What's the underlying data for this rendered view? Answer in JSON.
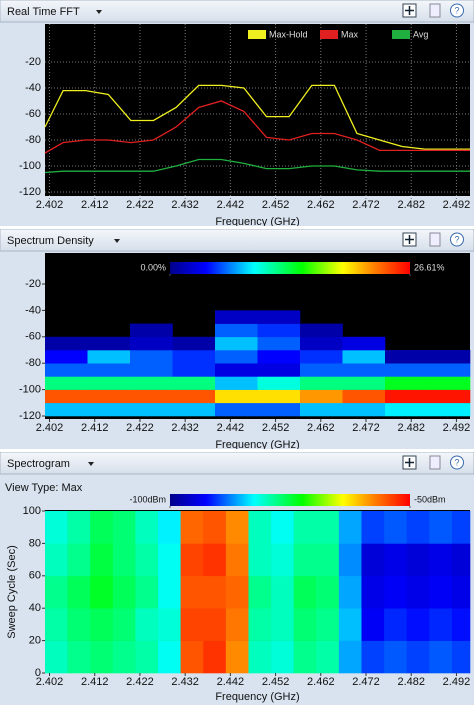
{
  "chart_data": [
    {
      "type": "line",
      "title": "Real Time FFT",
      "xlabel": "Frequency (GHz)",
      "x": [
        2.401,
        2.405,
        2.41,
        2.415,
        2.42,
        2.425,
        2.43,
        2.435,
        2.44,
        2.445,
        2.45,
        2.455,
        2.46,
        2.465,
        2.47,
        2.475,
        2.48,
        2.485,
        2.49,
        2.495
      ],
      "series": [
        {
          "name": "Max-Hold",
          "color": "#f0f020",
          "values": [
            -70,
            -42,
            -42,
            -45,
            -65,
            -65,
            -55,
            -38,
            -38,
            -40,
            -62,
            -62,
            -38,
            -38,
            -75,
            -80,
            -85,
            -87,
            -87,
            -87
          ]
        },
        {
          "name": "Max",
          "color": "#e02020",
          "values": [
            -90,
            -82,
            -80,
            -80,
            -82,
            -80,
            -70,
            -55,
            -50,
            -58,
            -78,
            -80,
            -75,
            -75,
            -80,
            -88,
            -88,
            -88,
            -88,
            -88
          ]
        },
        {
          "name": "Avg",
          "color": "#20b040",
          "values": [
            -105,
            -104,
            -104,
            -104,
            -104,
            -104,
            -100,
            -95,
            -95,
            -98,
            -102,
            -102,
            -100,
            -100,
            -103,
            -104,
            -104,
            -104,
            -104,
            -104
          ]
        }
      ],
      "xlim": [
        2.401,
        2.495
      ],
      "xticks": [
        2.402,
        2.412,
        2.422,
        2.432,
        2.442,
        2.452,
        2.462,
        2.472,
        2.482,
        2.492
      ],
      "ylim": [
        -120,
        -20
      ],
      "yticks": [
        -20,
        -40,
        -60,
        -80,
        -100,
        -120
      ],
      "grid": true
    },
    {
      "type": "heatmap",
      "title": "Spectrum Density",
      "xlabel": "Frequency (GHz)",
      "x_edges": [
        2.401,
        2.4104,
        2.4198,
        2.4292,
        2.4386,
        2.448,
        2.4574,
        2.4668,
        2.4762,
        2.4856,
        2.495
      ],
      "y_edges": [
        -120,
        -110,
        -100,
        -90,
        -80,
        -70,
        -60,
        -50,
        -40,
        -30,
        -20
      ],
      "values": [
        [
          8,
          8,
          8,
          8,
          6,
          6,
          8,
          8,
          9,
          9
        ],
        [
          24,
          24,
          24,
          24,
          20,
          20,
          22,
          24,
          26,
          26
        ],
        [
          12,
          12,
          12,
          12,
          8,
          10,
          12,
          12,
          14,
          14
        ],
        [
          6,
          6,
          6,
          5,
          3,
          3,
          6,
          6,
          6,
          6
        ],
        [
          4,
          8,
          6,
          5,
          6,
          4,
          5,
          8,
          1,
          1
        ],
        [
          1,
          1,
          2,
          1,
          8,
          6,
          2,
          3,
          0,
          0
        ],
        [
          0,
          0,
          1,
          0,
          6,
          5,
          1,
          0,
          0,
          0
        ],
        [
          0,
          0,
          0,
          0,
          2,
          2,
          0,
          0,
          0,
          0
        ],
        [
          0,
          0,
          0,
          0,
          0,
          0,
          0,
          0,
          0,
          0
        ],
        [
          0,
          0,
          0,
          0,
          0,
          0,
          0,
          0,
          0,
          0
        ]
      ],
      "clim": [
        0,
        26.61
      ],
      "cticks": [
        {
          "value": 0,
          "label": "0.00%"
        },
        {
          "value": 26.61,
          "label": "26.61%"
        }
      ],
      "xlim": [
        2.401,
        2.495
      ],
      "xticks": [
        2.402,
        2.412,
        2.422,
        2.432,
        2.442,
        2.452,
        2.462,
        2.472,
        2.482,
        2.492
      ],
      "ylim": [
        -120,
        -20
      ],
      "yticks": [
        -20,
        -40,
        -60,
        -80,
        -100,
        -120
      ],
      "grid": false
    },
    {
      "type": "heatmap",
      "title": "Spectrogram",
      "subtitle": "View Type: Max",
      "xlabel": "Frequency (GHz)",
      "ylabel": "Sweep Cycle (Sec)",
      "x_edges": [
        2.401,
        2.406,
        2.411,
        2.416,
        2.421,
        2.426,
        2.431,
        2.436,
        2.441,
        2.446,
        2.451,
        2.456,
        2.461,
        2.466,
        2.471,
        2.476,
        2.481,
        2.486,
        2.491,
        2.495
      ],
      "y_edges": [
        0,
        20,
        40,
        60,
        80,
        100
      ],
      "values": [
        [
          -80,
          -78,
          -77,
          -78,
          -79,
          -82,
          -55,
          -53,
          -58,
          -80,
          -81,
          -78,
          -79,
          -86,
          -90,
          -89,
          -90,
          -89,
          -90
        ],
        [
          -79,
          -77,
          -76,
          -77,
          -80,
          -81,
          -54,
          -54,
          -57,
          -79,
          -80,
          -77,
          -78,
          -85,
          -93,
          -91,
          -92,
          -91,
          -92
        ],
        [
          -78,
          -76,
          -74,
          -76,
          -78,
          -82,
          -55,
          -55,
          -56,
          -78,
          -80,
          -76,
          -77,
          -86,
          -94,
          -93,
          -94,
          -93,
          -94
        ],
        [
          -80,
          -78,
          -75,
          -77,
          -79,
          -82,
          -54,
          -53,
          -57,
          -80,
          -81,
          -78,
          -78,
          -87,
          -95,
          -94,
          -95,
          -94,
          -95
        ],
        [
          -81,
          -79,
          -76,
          -77,
          -80,
          -83,
          -56,
          -55,
          -58,
          -80,
          -82,
          -79,
          -79,
          -86,
          -90,
          -89,
          -90,
          -89,
          -90
        ]
      ],
      "clim": [
        -100,
        -50
      ],
      "cticks": [
        {
          "value": -100,
          "label": "-100dBm"
        },
        {
          "value": -50,
          "label": "-50dBm"
        }
      ],
      "xlim": [
        2.401,
        2.495
      ],
      "xticks": [
        2.402,
        2.412,
        2.422,
        2.432,
        2.442,
        2.452,
        2.462,
        2.472,
        2.482,
        2.492
      ],
      "ylim": [
        0,
        100
      ],
      "yticks": [
        0,
        20,
        40,
        60,
        80,
        100
      ],
      "grid": false
    }
  ]
}
